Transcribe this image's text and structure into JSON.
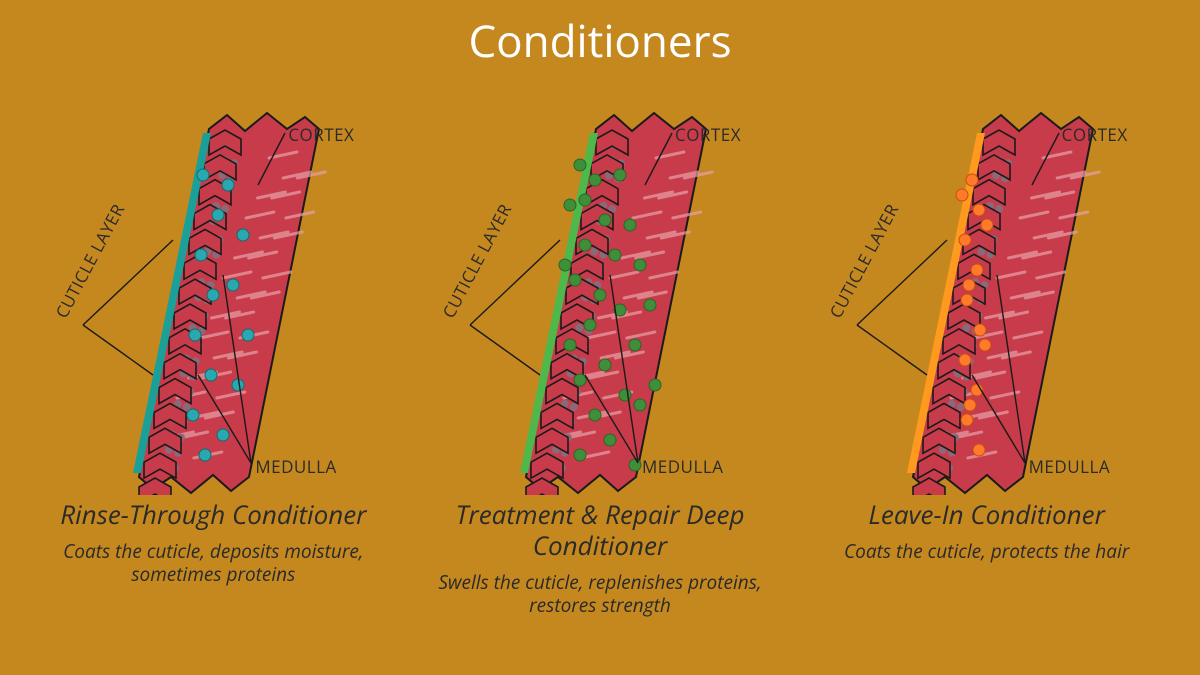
{
  "title": "Conditioners",
  "background_color": "#c4881f",
  "title_color": "#ffffff",
  "title_fontsize": 44,
  "label_color": "#2a2a2a",
  "hair": {
    "body_fill": "#c73b4a",
    "body_stroke": "#1a1a1a",
    "cuticle_stroke": "#1a1a1a",
    "medulla_fill": "#8a6a7a",
    "cortex_streak": "#e8a0a8",
    "leader_stroke": "#1a1a1a"
  },
  "anatomy_labels": {
    "cuticle": "CUTICLE LAYER",
    "cortex": "CORTEX",
    "medulla": "MEDULLA"
  },
  "panels": [
    {
      "id": "rinse",
      "title": "Rinse-Through Conditioner",
      "desc": "Coats the cuticle, deposits moisture, sometimes proteins",
      "coating_color": "#1aa098",
      "dot_color": "#2aa8b0",
      "dot_stroke": "#0e6e72",
      "dots": [
        [
          160,
          90
        ],
        [
          175,
          130
        ],
        [
          158,
          170
        ],
        [
          170,
          210
        ],
        [
          152,
          250
        ],
        [
          168,
          290
        ],
        [
          150,
          330
        ],
        [
          162,
          370
        ],
        [
          185,
          100
        ],
        [
          200,
          150
        ],
        [
          190,
          200
        ],
        [
          205,
          250
        ],
        [
          195,
          300
        ],
        [
          180,
          350
        ]
      ]
    },
    {
      "id": "treatment",
      "title": "Treatment & Repair Deep Conditioner",
      "desc": "Swells the cuticle, replenishes proteins, restores strength",
      "coating_color": "#4fb84a",
      "dot_color": "#3f8f3a",
      "dot_stroke": "#2a6628",
      "dots": [
        [
          150,
          80
        ],
        [
          165,
          95
        ],
        [
          140,
          120
        ],
        [
          175,
          135
        ],
        [
          155,
          160
        ],
        [
          185,
          170
        ],
        [
          145,
          195
        ],
        [
          170,
          210
        ],
        [
          200,
          140
        ],
        [
          210,
          180
        ],
        [
          190,
          225
        ],
        [
          160,
          240
        ],
        [
          205,
          260
        ],
        [
          175,
          280
        ],
        [
          150,
          295
        ],
        [
          195,
          310
        ],
        [
          165,
          330
        ],
        [
          210,
          320
        ],
        [
          180,
          355
        ],
        [
          150,
          370
        ],
        [
          205,
          380
        ],
        [
          140,
          260
        ],
        [
          220,
          220
        ],
        [
          135,
          180
        ],
        [
          225,
          300
        ],
        [
          155,
          115
        ],
        [
          190,
          90
        ]
      ]
    },
    {
      "id": "leavein",
      "title": "Leave-In Conditioner",
      "desc": "Coats the cuticle, protects the hair",
      "coating_color": "#ff9a1f",
      "dot_color": "#ff7a2a",
      "dot_stroke": "#c74f0e",
      "dots": [
        [
          155,
          95
        ],
        [
          162,
          125
        ],
        [
          148,
          155
        ],
        [
          160,
          185
        ],
        [
          150,
          215
        ],
        [
          163,
          245
        ],
        [
          148,
          275
        ],
        [
          160,
          305
        ],
        [
          150,
          335
        ],
        [
          162,
          365
        ],
        [
          145,
          110
        ],
        [
          170,
          140
        ],
        [
          152,
          200
        ],
        [
          168,
          260
        ],
        [
          153,
          320
        ]
      ]
    }
  ],
  "panel_title_fontsize": 26,
  "panel_desc_fontsize": 19,
  "anatomy_label_fontsize": 17
}
